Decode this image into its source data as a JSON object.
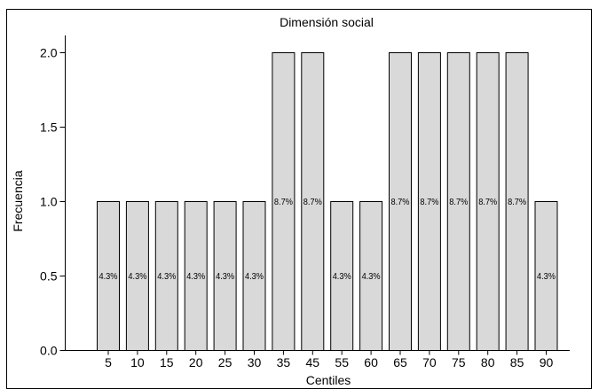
{
  "chart_data": {
    "type": "bar",
    "title": "Dimensión social",
    "xlabel": "Centiles",
    "ylabel": "Frecuencia",
    "categories": [
      "5",
      "10",
      "15",
      "20",
      "25",
      "30",
      "35",
      "45",
      "55",
      "60",
      "65",
      "70",
      "75",
      "80",
      "85",
      "90"
    ],
    "values": [
      1,
      1,
      1,
      1,
      1,
      1,
      2,
      2,
      1,
      1,
      2,
      2,
      2,
      2,
      2,
      1
    ],
    "data_labels": [
      "4.3%",
      "4.3%",
      "4.3%",
      "4.3%",
      "4.3%",
      "4.3%",
      "8.7%",
      "8.7%",
      "4.3%",
      "4.3%",
      "8.7%",
      "8.7%",
      "8.7%",
      "8.7%",
      "8.7%",
      "4.3%"
    ],
    "ylim": [
      0,
      2
    ],
    "yticks": [
      "0.0",
      "0.5",
      "1.0",
      "1.5",
      "2.0"
    ],
    "grid": false,
    "legend": "none",
    "colors": {
      "bar_fill": "#d9d9d9",
      "bar_stroke": "#000000"
    }
  }
}
